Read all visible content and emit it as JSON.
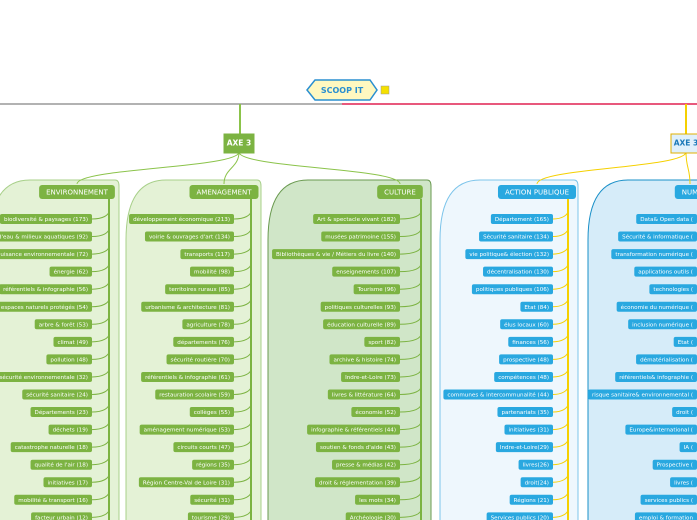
{
  "root": "SCOOP IT",
  "axes": [
    {
      "label": "AXE 3",
      "groups": [
        {
          "title": "ENVIRONNEMENT",
          "items": [
            "biodiversité & paysages (173)",
            "d'eau & milieux aquatiques (92)",
            "nuisance environnementale (72)",
            "énergie (62)",
            "référentiels & infographie (56)",
            "espaces naturels protégés (54)",
            "arbre & forêt (53)",
            "climat (49)",
            "pollution (48)",
            "sécurité environnementale (32)",
            "sécurité sanitaire (24)",
            "Départements (23)",
            "déchets (19)",
            "catastrophe naturelle (18)",
            "qualité de l'air (18)",
            "initiatives (17)",
            "mobilité & transport (16)",
            "facteur urbain (12)"
          ]
        },
        {
          "title": "AMENAGEMENT",
          "items": [
            "développement économique (213)",
            "voirie & ouvrages d'art (134)",
            "transports (117)",
            "mobilité (98)",
            "territoires ruraux (85)",
            "urbanisme & architecture (81)",
            "agriculture (78)",
            "départements (76)",
            "sécurité routière (70)",
            "référentiels & infographie (61)",
            "restauration scolaire (59)",
            "collèges (55)",
            "aménagement numérique (53)",
            "circuits courts (47)",
            "régions (35)",
            "Région Centre-Val de Loire (31)",
            "sécurité (31)",
            "tourisme (29)"
          ]
        },
        {
          "title": "CULTURE",
          "items": [
            "Art & spectacle vivant (182)",
            "musées patrimoine (155)",
            "Bibliothèques & vie / Métiers du livre (140)",
            "enseignements (107)",
            "Tourisme (96)",
            "politiques culturelles (93)",
            "éducation culturelle (89)",
            "sport (82)",
            "archive & histoire (74)",
            "Indre-et-Loire (73)",
            "livres & littérature (64)",
            "économie (52)",
            "infographie & référentiels (44)",
            "soutien & fonds d'aide (43)",
            "presse & médias (42)",
            "droit & réglementation (39)",
            "les mots (34)",
            "Archéologie (30)"
          ]
        }
      ]
    },
    {
      "label": "AXE 3",
      "groups": [
        {
          "title": "ACTION PUBLIQUE",
          "items": [
            "Département (165)",
            "Sécurité sanitaire (134)",
            "vie politique& élection (132)",
            "décentralisation (130)",
            "politiques publiques (106)",
            "Etat (84)",
            "élus locaux (60)",
            "finances (56)",
            "prospective (48)",
            "compétences (48)",
            "communes & intercommunalité (44)",
            "partenariats (35)",
            "initiatives (31)",
            "Indre-et-Loire(29)",
            "livres(26)",
            "droit(24)",
            "Régions (21)",
            "Services publics (20)"
          ]
        },
        {
          "title": "NUM",
          "items": [
            "Data& Open data (",
            "Sécurité & informatique (",
            "transformation numérique (",
            "applications outils (",
            "technologies (",
            "économie du numérique (",
            "inclusion numérique (",
            "Etat (",
            "dématérialisation (",
            "référentiels& infographie (",
            "risque sanitaire& environnemental (",
            "droit (",
            "Europe&international (",
            "IA (",
            "Prospective (",
            "livres (",
            "services publics (",
            "emploi & formation"
          ]
        }
      ]
    }
  ]
}
